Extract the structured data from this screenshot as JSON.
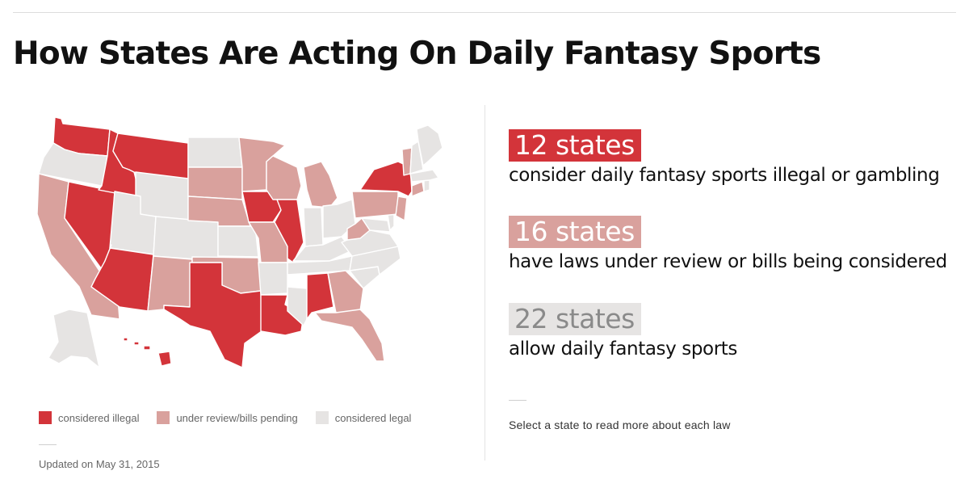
{
  "title": "How States Are Acting On Daily Fantasy Sports",
  "colors": {
    "illegal": "#d3343a",
    "review": "#d9a19d",
    "legal": "#e6e4e3",
    "legal_text": "#8a8a8a"
  },
  "legend": {
    "illegal": "considered illegal",
    "review": "under review/bills pending",
    "legal": "considered legal"
  },
  "stats": [
    {
      "count": "12 states",
      "description": "consider daily fantasy sports illegal or gambling"
    },
    {
      "count": "16 states",
      "description": "have laws under review or bills being considered"
    },
    {
      "count": "22 states",
      "description": "allow daily fantasy sports"
    }
  ],
  "hint": "Select a state to read more about each law",
  "updated": "Updated on May 31, 2015",
  "states": {
    "WA": "illegal",
    "OR": "legal",
    "CA": "review",
    "NV": "illegal",
    "ID": "illegal",
    "MT": "illegal",
    "WY": "legal",
    "UT": "legal",
    "AZ": "illegal",
    "CO": "legal",
    "NM": "review",
    "ND": "legal",
    "SD": "review",
    "NE": "review",
    "KS": "legal",
    "OK": "review",
    "TX": "illegal",
    "MN": "review",
    "IA": "illegal",
    "MO": "review",
    "AR": "legal",
    "LA": "illegal",
    "WI": "review",
    "IL": "illegal",
    "MS": "legal",
    "MI": "review",
    "IN": "legal",
    "KY": "legal",
    "TN": "legal",
    "AL": "illegal",
    "OH": "legal",
    "GA": "review",
    "FL": "review",
    "SC": "legal",
    "NC": "legal",
    "VA": "legal",
    "WV": "review",
    "PA": "review",
    "NY": "illegal",
    "VT": "review",
    "NH": "legal",
    "ME": "legal",
    "MA": "legal",
    "CT": "review",
    "RI": "legal",
    "NJ": "review",
    "DE": "legal",
    "MD": "legal",
    "AK": "legal",
    "HI": "illegal"
  }
}
